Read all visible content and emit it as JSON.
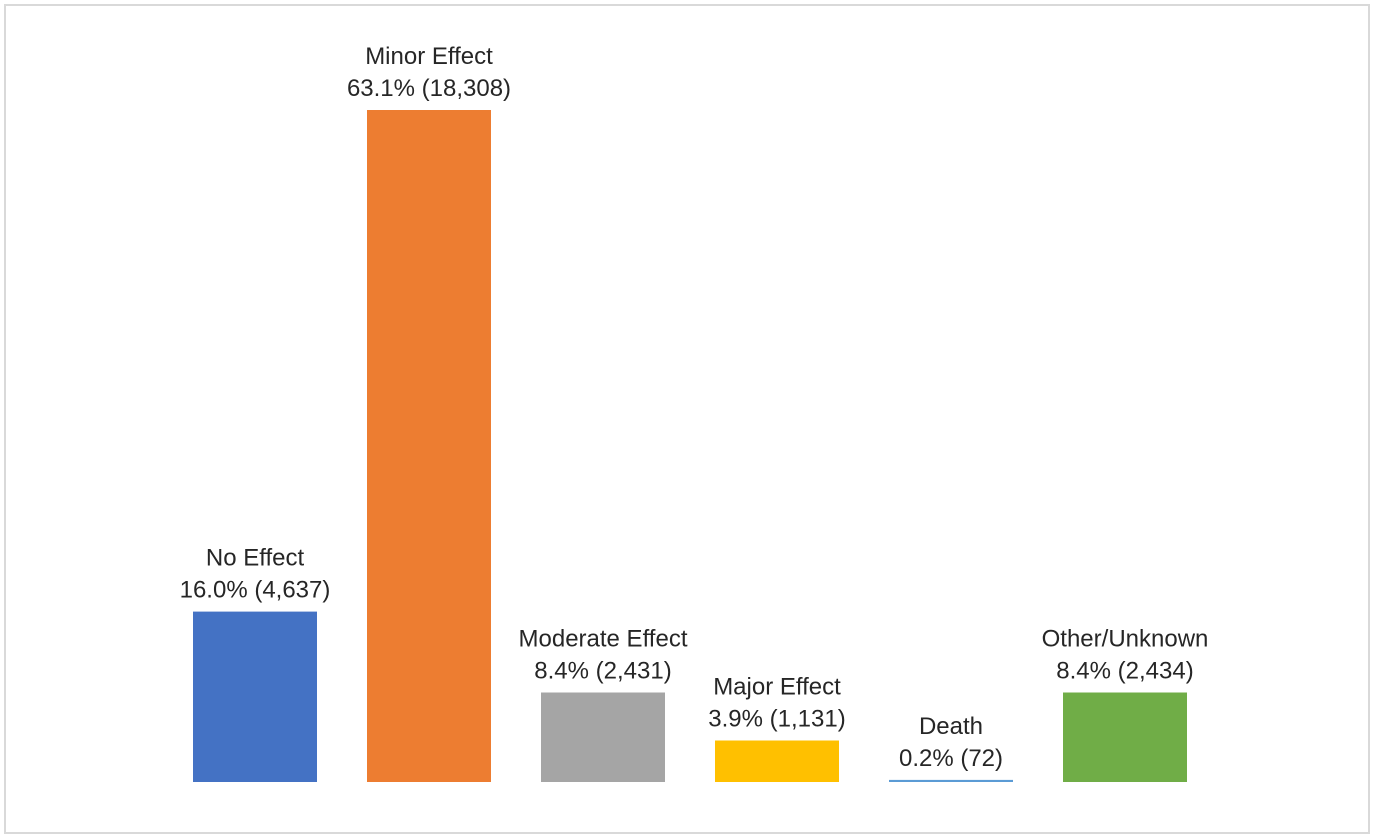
{
  "chart_data": {
    "type": "bar",
    "categories": [
      "No Effect",
      "Minor Effect",
      "Moderate Effect",
      "Major Effect",
      "Death",
      "Other/Unknown"
    ],
    "values": [
      16.0,
      63.1,
      8.4,
      3.9,
      0.2,
      8.4
    ],
    "counts": [
      "4,637",
      "18,308",
      "2,431",
      "1,131",
      "72",
      "2,434"
    ],
    "value_labels": [
      "16.0% (4,637)",
      "63.1% (18,308)",
      "8.4% (2,431)",
      "3.9% (1,131)",
      "0.2% (72)",
      "8.4% (2,434)"
    ],
    "colors": [
      "#4472c4",
      "#ed7d31",
      "#a5a5a5",
      "#ffc000",
      "#5b9bd5",
      "#70ad47"
    ],
    "title": "",
    "xlabel": "",
    "ylabel": "",
    "grid": false,
    "legend": "none"
  }
}
